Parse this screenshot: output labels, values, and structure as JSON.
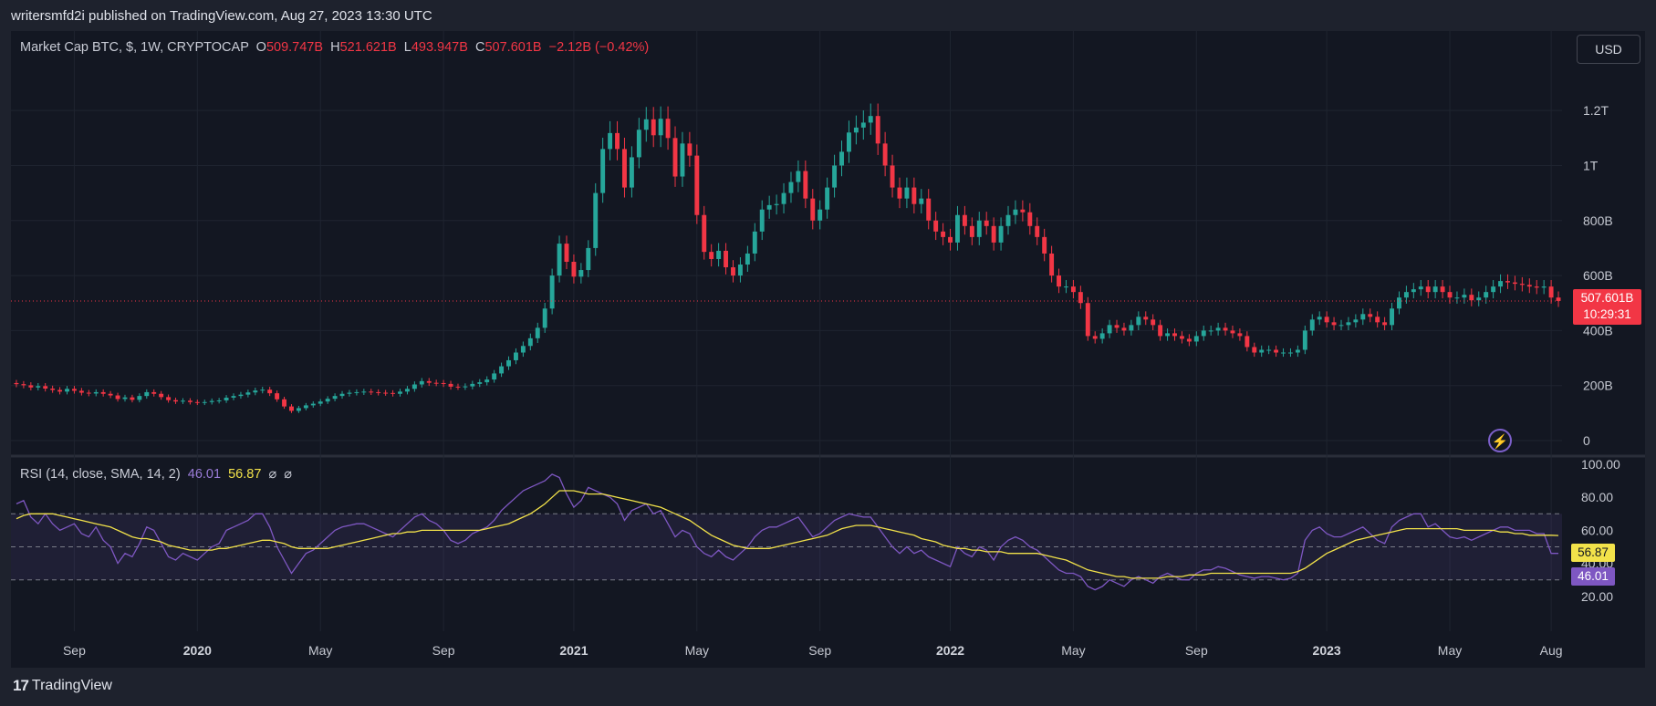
{
  "header": {
    "published_by": "writersmfd2i published on TradingView.com, Aug 27, 2023 13:30 UTC"
  },
  "legend": {
    "symbol": "Market Cap BTC, $, 1W, CRYPTOCAP",
    "open_label": "O",
    "open": "509.747B",
    "high_label": "H",
    "high": "521.621B",
    "low_label": "L",
    "low": "493.947B",
    "close_label": "C",
    "close": "507.601B",
    "change": "−2.12B (−0.42%)"
  },
  "currency_button": "USD",
  "price_tag": {
    "value": "507.601B",
    "countdown": "10:29:31"
  },
  "rsi_legend": {
    "name": "RSI (14, close, SMA, 14, 2)",
    "rsi": "46.01",
    "sma": "56.87",
    "icon1": "⌀",
    "icon2": "⌀"
  },
  "rsi_tags": {
    "sma": "56.87",
    "rsi": "46.01"
  },
  "footer": {
    "brand": "TradingView",
    "logo_glyph": "17"
  },
  "colors": {
    "up": "#26a69a",
    "down": "#f23645",
    "rsi": "#7e57c2",
    "sma": "#f2e24a",
    "bg": "#131722"
  },
  "chart_data": [
    {
      "type": "candlestick",
      "title": "Market Cap BTC, $, 1W, CRYPTOCAP",
      "y_ticks": [
        "0",
        "200B",
        "400B",
        "600B",
        "800B",
        "1T",
        "1.2T"
      ],
      "y_tick_values": [
        0,
        200,
        400,
        600,
        800,
        1000,
        1200
      ],
      "x_ticks": [
        "Sep",
        "2020",
        "May",
        "Sep",
        "2021",
        "May",
        "Sep",
        "2022",
        "May",
        "Sep",
        "2023",
        "May",
        "Aug"
      ],
      "x_tick_indices": [
        8,
        25,
        42,
        59,
        77,
        94,
        111,
        129,
        146,
        163,
        181,
        198,
        212
      ],
      "ylim": [
        0,
        1300
      ],
      "current_price_line": 507.601,
      "close_series_billions": [
        205,
        201,
        193,
        198,
        189,
        184,
        178,
        188,
        181,
        174,
        171,
        176,
        170,
        164,
        151,
        157,
        148,
        162,
        176,
        170,
        158,
        147,
        142,
        145,
        140,
        138,
        140,
        144,
        146,
        156,
        162,
        167,
        175,
        182,
        185,
        172,
        150,
        124,
        108,
        118,
        128,
        134,
        142,
        152,
        162,
        170,
        174,
        176,
        178,
        176,
        174,
        173,
        170,
        178,
        188,
        204,
        216,
        210,
        209,
        206,
        196,
        195,
        197,
        206,
        212,
        222,
        244,
        270,
        292,
        320,
        344,
        372,
        410,
        480,
        600,
        716,
        650,
        596,
        620,
        700,
        900,
        1060,
        1118,
        1060,
        920,
        1030,
        1130,
        1168,
        1110,
        1170,
        1100,
        960,
        1080,
        1036,
        820,
        686,
        660,
        690,
        630,
        600,
        640,
        680,
        760,
        840,
        856,
        860,
        900,
        940,
        980,
        880,
        800,
        840,
        920,
        1000,
        1050,
        1120,
        1138,
        1156,
        1180,
        1080,
        1000,
        920,
        880,
        920,
        860,
        880,
        800,
        760,
        740,
        720,
        820,
        780,
        740,
        800,
        780,
        720,
        780,
        820,
        840,
        830,
        780,
        740,
        680,
        600,
        560,
        560,
        540,
        500,
        380,
        370,
        390,
        420,
        410,
        400,
        420,
        450,
        440,
        420,
        380,
        390,
        380,
        370,
        360,
        380,
        400,
        400,
        410,
        400,
        390,
        380,
        340,
        320,
        330,
        330,
        320,
        320,
        320,
        330,
        400,
        440,
        450,
        430,
        420,
        420,
        430,
        440,
        460,
        450,
        430,
        420,
        480,
        520,
        540,
        550,
        560,
        540,
        560,
        540,
        520,
        520,
        530,
        510,
        520,
        540,
        560,
        580,
        575,
        570,
        566,
        560,
        556,
        560,
        520,
        507.601
      ],
      "rsi_panel": {
        "ylim": [
          0,
          100
        ],
        "y_ticks": [
          "20.00",
          "40.00",
          "60.00",
          "80.00",
          "100.00"
        ],
        "y_tick_values": [
          20,
          40,
          60,
          80,
          100
        ],
        "band": [
          30,
          70
        ],
        "midline": 50,
        "rsi_last": 46.01,
        "sma_last": 56.87,
        "rsi_series": [
          76,
          78,
          68,
          64,
          70,
          64,
          60,
          62,
          64,
          58,
          56,
          62,
          54,
          50,
          40,
          46,
          44,
          52,
          62,
          60,
          52,
          44,
          42,
          46,
          44,
          42,
          46,
          50,
          52,
          60,
          62,
          64,
          66,
          70,
          70,
          62,
          50,
          42,
          34,
          40,
          46,
          48,
          52,
          56,
          60,
          62,
          63,
          64,
          64,
          62,
          60,
          58,
          56,
          60,
          64,
          68,
          70,
          66,
          64,
          60,
          54,
          52,
          54,
          58,
          60,
          62,
          66,
          72,
          76,
          80,
          84,
          86,
          88,
          90,
          94,
          92,
          82,
          74,
          78,
          86,
          84,
          82,
          80,
          76,
          66,
          72,
          74,
          76,
          70,
          72,
          64,
          56,
          60,
          58,
          50,
          46,
          44,
          48,
          44,
          42,
          46,
          50,
          56,
          60,
          62,
          62,
          64,
          66,
          68,
          62,
          56,
          58,
          62,
          66,
          68,
          70,
          69,
          68,
          68,
          62,
          56,
          50,
          46,
          50,
          46,
          48,
          44,
          42,
          40,
          38,
          50,
          46,
          44,
          50,
          48,
          42,
          50,
          54,
          56,
          54,
          50,
          48,
          44,
          40,
          36,
          34,
          34,
          32,
          26,
          24,
          26,
          30,
          28,
          26,
          30,
          32,
          30,
          28,
          32,
          34,
          32,
          30,
          30,
          34,
          36,
          36,
          38,
          37,
          35,
          33,
          32,
          31,
          32,
          32,
          31,
          30,
          31,
          34,
          54,
          60,
          62,
          58,
          56,
          56,
          58,
          60,
          62,
          58,
          54,
          52,
          62,
          66,
          68,
          70,
          70,
          62,
          64,
          60,
          56,
          55,
          56,
          54,
          56,
          58,
          60,
          62,
          62,
          60,
          60,
          60,
          58,
          58,
          46,
          46
        ],
        "sma_series": [
          67,
          69,
          70,
          70,
          70,
          70,
          69,
          68,
          67,
          66,
          65,
          64,
          63,
          62,
          60,
          58,
          56,
          55,
          55,
          54,
          53,
          51,
          50,
          49,
          48,
          48,
          48,
          48,
          49,
          49,
          50,
          51,
          52,
          53,
          54,
          54,
          53,
          52,
          50,
          49,
          49,
          49,
          49,
          49,
          50,
          51,
          52,
          53,
          54,
          55,
          56,
          57,
          58,
          58,
          59,
          59,
          60,
          60,
          60,
          60,
          60,
          60,
          60,
          60,
          60,
          61,
          62,
          63,
          64,
          66,
          68,
          70,
          73,
          76,
          80,
          84,
          84,
          84,
          83,
          82,
          82,
          82,
          81,
          80,
          79,
          78,
          77,
          76,
          75,
          74,
          72,
          70,
          68,
          66,
          63,
          60,
          57,
          55,
          53,
          51,
          50,
          49,
          49,
          49,
          49,
          50,
          51,
          52,
          53,
          54,
          55,
          56,
          57,
          59,
          61,
          62,
          63,
          63,
          63,
          62,
          61,
          60,
          59,
          58,
          57,
          55,
          54,
          53,
          51,
          50,
          49,
          49,
          48,
          48,
          47,
          47,
          47,
          46,
          46,
          46,
          46,
          46,
          45,
          44,
          43,
          42,
          40,
          38,
          36,
          35,
          34,
          33,
          32,
          32,
          31,
          31,
          31,
          31,
          31,
          32,
          32,
          32,
          33,
          33,
          33,
          34,
          34,
          34,
          34,
          34,
          34,
          34,
          34,
          34,
          34,
          34,
          34,
          35,
          37,
          40,
          43,
          46,
          48,
          50,
          52,
          54,
          55,
          56,
          57,
          58,
          59,
          60,
          61,
          61,
          61,
          61,
          61,
          61,
          61,
          61,
          60,
          60,
          60,
          60,
          60,
          59,
          59,
          58,
          58,
          57,
          57,
          57,
          57,
          56.87
        ]
      }
    }
  ]
}
